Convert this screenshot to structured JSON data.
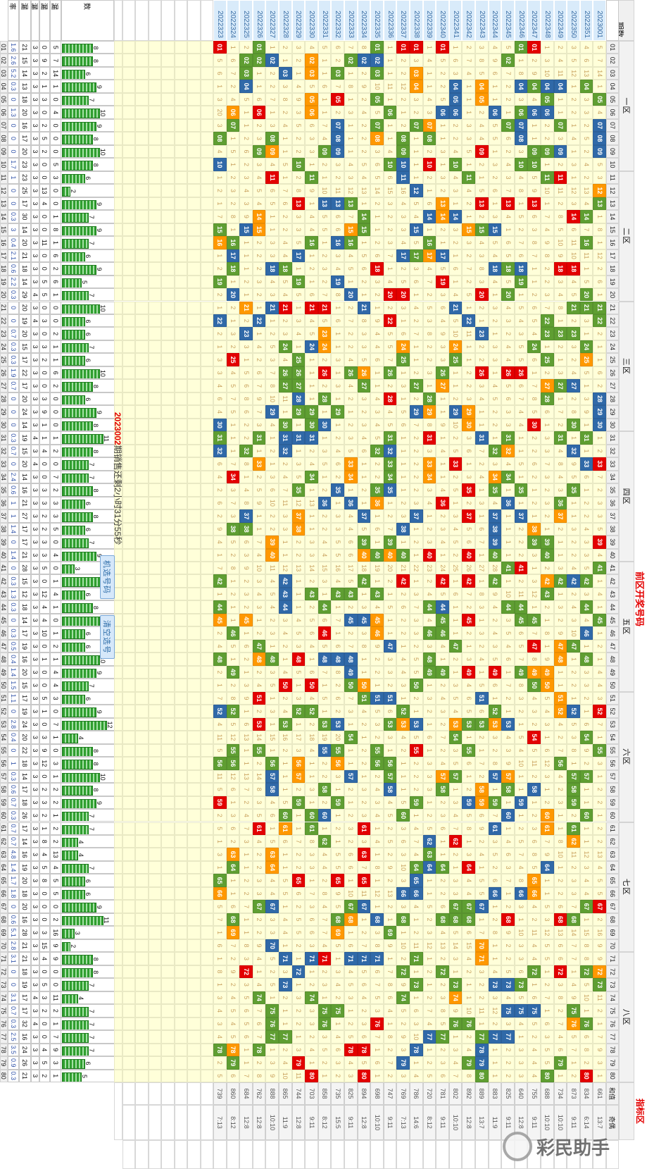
{
  "header": {
    "period_label": "期数",
    "title_left": "前区开奖号码",
    "title_right": "指标区",
    "sum_label": "和值",
    "parity_label": "奇偶",
    "zones": [
      {
        "name": "一区",
        "from": 1,
        "to": 10
      },
      {
        "name": "二区",
        "from": 11,
        "to": 20
      },
      {
        "name": "三区",
        "from": 21,
        "to": 30
      },
      {
        "name": "四区",
        "from": 31,
        "to": 40
      },
      {
        "name": "五区",
        "from": 41,
        "to": 50
      },
      {
        "name": "六区",
        "from": 51,
        "to": 60
      },
      {
        "name": "七区",
        "from": 61,
        "to": 70
      },
      {
        "name": "八区",
        "from": 71,
        "to": 80
      }
    ]
  },
  "stats_headers": {
    "count": "数",
    "m5": "漏",
    "m4": "漏",
    "m3": "漏",
    "m2": "漏",
    "rate": "率"
  },
  "countdown": {
    "period": "2023002",
    "text": "期销售还剩2小时31分55秒"
  },
  "buttons": {
    "pick": "机选号码",
    "clear": "清空选号"
  },
  "watermark": "彩民助手",
  "colors": {
    "red": "#e30000",
    "green": "#5f9e32",
    "blue": "#3069a8",
    "orange": "#ff9800",
    "miss_bg": "#ffffd9",
    "miss_text": "#c9a15e",
    "header_bg": "#d9ebfa",
    "header_text": "#3a6ea5"
  },
  "periods": [
    "2023001",
    "2022351",
    "2022350",
    "2022349",
    "2022348",
    "2022347",
    "2022346",
    "2022345",
    "2022344",
    "2022343",
    "2022342",
    "2022341",
    "2022340",
    "2022339",
    "2022338",
    "2022337",
    "2022336",
    "2022335",
    "2022334",
    "2022333",
    "2022332",
    "2022331",
    "2022330",
    "2022329",
    "2022328",
    "2022327",
    "2022326",
    "2022325",
    "2022324",
    "2022323"
  ],
  "sums": [
    "661",
    "834",
    "873",
    "734",
    "688",
    "755",
    "640",
    "825",
    "883",
    "889",
    "892",
    "802",
    "781",
    "720",
    "786",
    "769",
    "747",
    "698",
    "894",
    "825",
    "735",
    "858",
    "703",
    "744",
    "865",
    "888",
    "762",
    "684",
    "860",
    "739"
  ],
  "parity": [
    "13:7",
    "6:14",
    "9:11",
    "10:10",
    "10:10",
    "9:11",
    "12:8",
    "9:11",
    "11:9",
    "13:7",
    "12:8",
    "10:10",
    "9:11",
    "8:12",
    "14:6",
    "7:13",
    "9:11",
    "10:10",
    "12:8",
    "9:11",
    "15:5",
    "8:12",
    "9:11",
    "12:8",
    "11:9",
    "10:10",
    "12:8",
    "12:8",
    "8:12",
    "7:13"
  ],
  "empty_future_rows": 7,
  "balls": [
    {
      "n": "01",
      "seed": 0,
      "hits": "6R,7G,13R,15R,16R,18G,27G,30R",
      "stats": [
        "1.6",
        "21",
        "3",
        "0",
        "5"
      ]
    },
    {
      "n": "02",
      "seed": 4,
      "hits": "8G,18B,19B,20G,23O,26B,27G,28G",
      "stats": [
        "2.6",
        "15",
        "3",
        "9",
        "7"
      ]
    },
    {
      "n": "03",
      "seed": 5,
      "hits": "15O,18G,21G,23O,25B,28G",
      "stats": [
        "5.2",
        "14",
        "3",
        "2",
        "14"
      ]
    },
    {
      "n": "04",
      "seed": 0,
      "hits": "2G,4B,5B,6G,7B,10O,12B,15O,28B",
      "stats": [
        "0.3",
        "13",
        "3",
        "1",
        "1"
      ]
    },
    {
      "n": "05",
      "seed": 2,
      "hits": "1G,5G,10O,12B,18G,21R,23O",
      "stats": [
        "0",
        "18",
        "3",
        "3",
        "0"
      ]
    },
    {
      "n": "06",
      "seed": 19,
      "hits": "5B,6B,7G,9B,12B,13B,17G,23O,27R,29O",
      "stats": [
        "1.3",
        "20",
        "3",
        "0",
        "4"
      ]
    },
    {
      "n": "07",
      "seed": 2,
      "hits": "1B,4G,7B,8G,14O,15G,18G,21B,29G",
      "stats": [
        "0",
        "16",
        "3",
        "2",
        "0"
      ]
    },
    {
      "n": "08",
      "seed": 0,
      "hits": "1B,7B,14G,16G,18O,21B,26G,30G",
      "stats": [
        "0",
        "17",
        "3",
        "5",
        "0"
      ]
    },
    {
      "n": "09",
      "seed": 3,
      "hits": "1B,4B,5G,6G,10R,16G,21B,22G,26O,27G",
      "stats": [
        "0",
        "20",
        "3",
        "2",
        "0"
      ]
    },
    {
      "n": "10",
      "seed": 0,
      "hits": "6G,7G,12G,14R,16B,17G,24G,30B",
      "stats": [
        "1.7",
        "23",
        "3",
        "0",
        "5"
      ]
    },
    {
      "n": "11",
      "seed": 0,
      "hits": "4R,5G,11G,16B,23G,26R",
      "stats": [
        "1",
        "23",
        "3",
        "0",
        "3"
      ]
    },
    {
      "n": "12",
      "seed": 1,
      "hits": "1O,15B",
      "stats": [
        "0",
        "25",
        "3",
        "13",
        "0"
      ]
    },
    {
      "n": "13",
      "seed": 0,
      "hits": "1G,6R,8R,10R,13O,20G,21B,22B,24R",
      "stats": [
        "0",
        "17",
        "3",
        "4",
        "0"
      ]
    },
    {
      "n": "14",
      "seed": 6,
      "hits": "2G,3R,12B,13O,14B,19G,27O",
      "stats": [
        "0.3",
        "30",
        "3",
        "0",
        "1"
      ]
    },
    {
      "n": "15",
      "seed": 0,
      "hits": "9B,10G,11O,15B,19G,20O,27O,28B,30G",
      "stats": [
        "3",
        "14",
        "3",
        "0",
        "8"
      ]
    },
    {
      "n": "16",
      "seed": 0,
      "hits": "2G,14G,20G,21B,23G,29G,30O",
      "stats": [
        "0.4",
        "20",
        "3",
        "11",
        "1"
      ]
    },
    {
      "n": "17",
      "seed": 0,
      "hits": "13B,14O,15G,16B,24B,29B",
      "stats": [
        "2.1",
        "21",
        "3",
        "0",
        "6"
      ]
    },
    {
      "n": "18",
      "seed": 1,
      "hits": "3R,4R,7B,8G,9B,18R,25G,26B,29G",
      "stats": [
        "0.6",
        "18",
        "3",
        "0",
        "2"
      ]
    },
    {
      "n": "19",
      "seed": 0,
      "hits": "7G,13R,21B,24G,30G",
      "stats": [
        "2.2",
        "14",
        "3",
        "5",
        "6"
      ]
    },
    {
      "n": "20",
      "seed": 1,
      "hits": "2G,8G,10R,16R,17R,20B,29B",
      "stats": [
        "0.3",
        "29",
        "4",
        "5",
        "1"
      ]
    },
    {
      "n": "21",
      "seed": 0,
      "hits": "1G,2G,3G,12B,19B,22R,23R,25R,26B,28O",
      "stats": [
        "0",
        "20",
        "3",
        "0",
        "0"
      ]
    },
    {
      "n": "22",
      "seed": 0,
      "hits": "1G,5G,11B,17R,27B,30B",
      "stats": [
        "0",
        "19",
        "4",
        "3",
        "0"
      ]
    },
    {
      "n": "23",
      "seed": 1,
      "hits": "3G,4G,5G,10B,22O,28B",
      "stats": [
        "0.7",
        "20",
        "3",
        "0",
        "2"
      ]
    },
    {
      "n": "24",
      "seed": 0,
      "hits": "2G,6G,12O,16O,22O,23B,25G",
      "stats": [
        "0.3",
        "15",
        "3",
        "3",
        "1"
      ]
    },
    {
      "n": "25",
      "seed": 2,
      "hits": "2O,5G,12G,16G,24G,29R",
      "stats": [
        "0.3",
        "17",
        "3",
        "2",
        "1"
      ]
    },
    {
      "n": "26",
      "seed": 2,
      "hits": "7R,8R,10R,13G,17G,19O,20G,22R,24G,25G",
      "stats": [
        "1.9",
        "22",
        "3",
        "0",
        "6"
      ]
    },
    {
      "n": "27",
      "seed": 3,
      "hits": "3B,4G,5O,13O,15G,19G,24G,25G",
      "stats": [
        "0.7",
        "17",
        "3",
        "0",
        "2"
      ]
    },
    {
      "n": "28",
      "seed": 5,
      "hits": "1B,5G,14G,17R,22G,24B",
      "stats": [
        "0",
        "20",
        "3",
        "3",
        "0"
      ]
    },
    {
      "n": "29",
      "seed": 3,
      "hits": "1B,11O,12B,14O,15B,21G,23G,24G,26B",
      "stats": [
        "0",
        "24",
        "3",
        "9",
        "0"
      ]
    },
    {
      "n": "30",
      "seed": 0,
      "hits": "1B,3G,6R,11O,22B,23G,25G,30B",
      "stats": [
        "0",
        "14",
        "3",
        "1",
        "0"
      ]
    },
    {
      "n": "31",
      "seed": 0,
      "hits": "2G,4G,8G,10B,14R,17G,23B,24B,25B,27G,30G",
      "stats": [
        "0.3",
        "19",
        "4",
        "1",
        "1"
      ]
    },
    {
      "n": "32",
      "seed": 0,
      "hits": "3B,8O,9G,17B,18G,25B,28G,30B",
      "stats": [
        "0.7",
        "15",
        "3",
        "4",
        "2"
      ]
    },
    {
      "n": "33",
      "seed": 5,
      "hits": "1R,2B,12R,14O,17G,20O,27O",
      "stats": [
        "0",
        "20",
        "4",
        "0",
        "0"
      ]
    },
    {
      "n": "34",
      "seed": 3,
      "hits": "8G,9O,14O,17G,20O,23G,29R",
      "stats": [
        "2.4",
        "14",
        "3",
        "0",
        "7"
      ]
    },
    {
      "n": "35",
      "seed": 1,
      "hits": "3G,7G,9G,11R,17B,18G,21B,24G",
      "stats": [
        "0.6",
        "16",
        "3",
        "3",
        "2"
      ]
    },
    {
      "n": "36",
      "seed": 5,
      "hits": "4G,8B,13R,18O,20B,22B",
      "stats": [
        "1",
        "21",
        "3",
        "3",
        "3"
      ]
    },
    {
      "n": "37",
      "seed": 1,
      "hits": "4O,7B,9B,11R,15B,19B,24O,28B",
      "stats": [
        "1",
        "27",
        "3",
        "2",
        "3"
      ]
    },
    {
      "n": "38",
      "seed": 8,
      "hits": "6O,9B,16B,24O,28G,29G",
      "stats": [
        "1.4",
        "17",
        "3",
        "2",
        "5"
      ]
    },
    {
      "n": "39",
      "seed": 3,
      "hits": "1R,5G,6G,9B,17G,19G,26O",
      "stats": [
        "0",
        "17",
        "3",
        "3",
        "0"
      ]
    },
    {
      "n": "40",
      "seed": 0,
      "hits": "5G,9G,11R,14R,16G,17O,18G,19O,26O",
      "stats": [
        "1.4",
        "21",
        "3",
        "3",
        "4"
      ]
    },
    {
      "n": "41",
      "seed": 6,
      "hits": "1G,7R,8G",
      "stats": [
        "0",
        "28",
        "3",
        "5",
        "0"
      ]
    },
    {
      "n": "42",
      "seed": 0,
      "hits": "2G,3B,4G,5O,9G,11R,13R,16R,19G,25B,30G",
      "stats": [
        "0.3",
        "15",
        "3",
        "0",
        "1"
      ]
    },
    {
      "n": "43",
      "seed": 0,
      "hits": "5G,18G,20G,21G,23G,25B",
      "stats": [
        "1.3",
        "12",
        "3",
        "12",
        "4"
      ]
    },
    {
      "n": "44",
      "seed": 0,
      "hits": "2G,7G,8G,13B,14G,22G,25B,30G",
      "stats": [
        "0.3",
        "18",
        "3",
        "4",
        "1"
      ]
    },
    {
      "n": "45",
      "seed": 0,
      "hits": "1G,6G,7G,11R,13G,18O,19B,20B,28O,30O",
      "stats": [
        "0",
        "14",
        "3",
        "4",
        "0"
      ]
    },
    {
      "n": "46",
      "seed": 1,
      "hits": "2B,13G,14G,18O,22R,29G",
      "stats": [
        "0.3",
        "17",
        "3",
        "10",
        "1"
      ]
    },
    {
      "n": "47",
      "seed": 3,
      "hits": "3G,4O,6R,12G,17B,27G",
      "stats": [
        "0.5",
        "19",
        "3",
        "0",
        "2"
      ]
    },
    {
      "n": "48",
      "seed": 0,
      "hits": "2G,4O,14G,20B,21B,22B,24R,26G,27O,30G",
      "stats": [
        "0.4",
        "16",
        "3",
        "1",
        "1"
      ]
    },
    {
      "n": "49",
      "seed": 1,
      "hits": "5O,6O,7G,9R,11R,13G,14G,20B,29G",
      "stats": [
        "1.4",
        "20",
        "3",
        "0",
        "4"
      ]
    },
    {
      "n": "50",
      "seed": 0,
      "hits": "5O,6G,15G,19O,20G,23R,25R",
      "stats": [
        "1.5",
        "15",
        "3",
        "0",
        "4"
      ]
    },
    {
      "n": "51",
      "seed": 6,
      "hits": "4O,10B,17B,18B,19G,27R",
      "stats": [
        "1.1",
        "17",
        "3",
        "5",
        "3"
      ]
    },
    {
      "n": "52",
      "seed": 0,
      "hits": "1R,3B,4O,9G,16G,23G,24G,29G,30B",
      "stats": [
        "0",
        "19",
        "3",
        "1",
        "0"
      ]
    },
    {
      "n": "53",
      "seed": 3,
      "hits": "8B,9O,10G,11G,12O,15B,16O,17G,21B,22G,25G,27R",
      "stats": [
        "2.8",
        "24",
        "3",
        "0",
        "7"
      ]
    },
    {
      "n": "54",
      "seed": 10,
      "hits": "2G,6R,12G,20G",
      "stats": [
        "0.4",
        "20",
        "3",
        "3",
        "1"
      ]
    },
    {
      "n": "55",
      "seed": 4,
      "hits": "1G,11G,15R,18G,21G,22B,27G,29G",
      "stats": [
        "0",
        "22",
        "3",
        "9",
        "0"
      ]
    },
    {
      "n": "56",
      "seed": 0,
      "hits": "4G,17G,18G,21O,24O,26G,29G,30G",
      "stats": [
        "1",
        "18",
        "3",
        "12",
        "3"
      ]
    },
    {
      "n": "57",
      "seed": 10,
      "hits": "2G,3G,8O,9B,12G,13O,17G,20B,24O,26B",
      "stats": [
        "0.3",
        "14",
        "3",
        "0",
        "1"
      ]
    },
    {
      "n": "58",
      "seed": 4,
      "hits": "3G,6B,8G,10O,13G,17B,22G,26B",
      "stats": [
        "0.6",
        "17",
        "3",
        "2",
        "2"
      ]
    },
    {
      "n": "59",
      "seed": 0,
      "hits": "3G,7B,9G,10O,11B,15G,21G,24G,30R",
      "stats": [
        "0.7",
        "18",
        "3",
        "3",
        "2"
      ]
    },
    {
      "n": "60",
      "seed": 1,
      "hits": "2G,5O,8B,16G,22B,23G,25G",
      "stats": [
        "0.3",
        "26",
        "3",
        "2",
        "1"
      ]
    },
    {
      "n": "61",
      "seed": 4,
      "hits": "3G,5O,9B,19R,23G,25O,27R",
      "stats": [
        "0.7",
        "17",
        "3",
        "1",
        "2"
      ]
    },
    {
      "n": "62",
      "seed": 0,
      "hits": "3O,12R,14B,22G",
      "stats": [
        "0.7",
        "14",
        "3",
        "8",
        "2"
      ]
    },
    {
      "n": "63",
      "seed": 2,
      "hits": "14G,19R,26O,29O",
      "stats": [
        "4.8",
        "16",
        "3",
        "4",
        "13"
      ]
    },
    {
      "n": "64",
      "seed": 0,
      "hits": "5B,11R,13G,14B,15G,26O,29G",
      "stats": [
        "1.4",
        "19",
        "3",
        "5",
        "4"
      ]
    },
    {
      "n": "65",
      "seed": 0,
      "hits": "6O,15B,19R,21R,24R,30G",
      "stats": [
        "1.7",
        "20",
        "3",
        "8",
        "5"
      ]
    },
    {
      "n": "66",
      "seed": 0,
      "hits": "6O,7B,9B,15B,16B,30O",
      "stats": [
        "1.8",
        "18",
        "3",
        "0",
        "5"
      ]
    },
    {
      "n": "67",
      "seed": 4,
      "hits": "1R,2G,10B,11G,12G,19B,20G,26B,27G",
      "stats": [
        "0",
        "20",
        "3",
        "0",
        "0"
      ]
    },
    {
      "n": "68",
      "seed": 6,
      "hits": "3G,4R,8R,11G,12G,13G,16G,18B,20O,21G,29G",
      "stats": [
        "0.6",
        "16",
        "3",
        "0",
        "2"
      ]
    },
    {
      "n": "69",
      "seed": 0,
      "hits": "17G,21O,29O",
      "stats": [
        "5.1",
        "28",
        "3",
        "3",
        "16"
      ]
    },
    {
      "n": "70",
      "seed": 5,
      "hits": "10O,26B",
      "stats": [
        "2.8",
        "21",
        "3",
        "15",
        "9"
      ]
    },
    {
      "n": "71",
      "seed": 0,
      "hits": "10O,15G,18B,19B,20B,22R,23B,25B",
      "stats": [
        "3.1",
        "21",
        "3",
        "4",
        "9"
      ]
    },
    {
      "n": "72",
      "seed": 7,
      "hits": "1O,2G,4R,6G,13G,16G,24B,28R",
      "stats": [
        "0",
        "18",
        "3",
        "0",
        "0"
      ]
    },
    {
      "n": "73",
      "seed": 0,
      "hits": "1G,7G,8B,9B,12G,15G,25B",
      "stats": [
        "0",
        "19",
        "3",
        "5",
        "0"
      ]
    },
    {
      "n": "74",
      "seed": 2,
      "hits": "12O,16G,23G,27G",
      "stats": [
        "3.1",
        "17",
        "4",
        "3",
        "11"
      ]
    },
    {
      "n": "75",
      "seed": 3,
      "hits": "3G,6B,7B,8B,21G,22G,26G",
      "stats": [
        "0.7",
        "17",
        "3",
        "2",
        "2"
      ]
    },
    {
      "n": "76",
      "seed": 2,
      "hits": "2G,3O,11G,12G,18R,22G,26G",
      "stats": [
        "0.3",
        "32",
        "4",
        "0",
        "1"
      ]
    },
    {
      "n": "77",
      "seed": 3,
      "hits": "8B,9B,10G,13G,14B,25G,26G",
      "stats": [
        "2.5",
        "16",
        "3",
        "0",
        "7"
      ]
    },
    {
      "n": "78",
      "seed": 0,
      "hits": "10B,15B,19R,20R,27G,29O,30G",
      "stats": [
        "3.5",
        "24",
        "3",
        "4",
        "9"
      ]
    },
    {
      "n": "79",
      "seed": 1,
      "hits": "4G,10B,11G,16B,24R,29G",
      "stats": [
        "0.9",
        "26",
        "3",
        "5",
        "3"
      ]
    },
    {
      "n": "80",
      "seed": 4,
      "hits": "2R,5G,10G,19R,23R",
      "stats": [
        "0.3",
        "21",
        "3",
        "2",
        "1"
      ]
    }
  ]
}
